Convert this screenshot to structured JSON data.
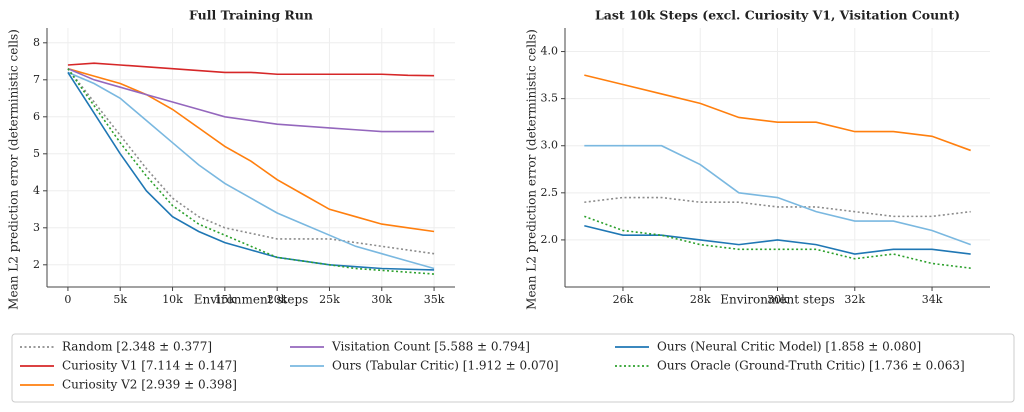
{
  "chart_data": [
    {
      "type": "line",
      "title": "Full Training Run",
      "xlabel": "Environment steps",
      "ylabel": "Mean L2 prediction error (deterministic cells)",
      "legend": "bottom",
      "x": [
        0,
        2500,
        5000,
        7500,
        10000,
        12500,
        15000,
        17500,
        20000,
        22500,
        25000,
        27500,
        30000,
        32500,
        35000
      ],
      "xlim": [
        -2000,
        37000
      ],
      "xticks": [
        0,
        {
          "value": 5000,
          "label": "5k"
        },
        {
          "value": 10000,
          "label": "10k"
        },
        {
          "value": 15000,
          "label": "15k"
        },
        {
          "value": 20000,
          "label": "20k"
        },
        {
          "value": 25000,
          "label": "25k"
        },
        {
          "value": 30000,
          "label": "30k"
        },
        {
          "value": 35000,
          "label": "35k"
        }
      ],
      "ylim": [
        1.4,
        8.4
      ],
      "yticks": [
        2,
        3,
        4,
        5,
        6,
        7,
        8
      ],
      "grid": true,
      "series": [
        {
          "name": "Random  [2.348 ± 0.377]",
          "color": "#8c8c8c",
          "dash": "dotted",
          "values": [
            7.3,
            6.4,
            5.5,
            4.6,
            3.8,
            3.3,
            3.0,
            2.85,
            2.7,
            2.7,
            2.7,
            2.6,
            2.5,
            2.4,
            2.3
          ]
        },
        {
          "name": "Curiosity V1  [7.114 ± 0.147]",
          "color": "#d62728",
          "dash": "solid",
          "values": [
            7.4,
            7.45,
            7.4,
            7.35,
            7.3,
            7.25,
            7.2,
            7.2,
            7.15,
            7.15,
            7.15,
            7.15,
            7.15,
            7.12,
            7.11
          ]
        },
        {
          "name": "Curiosity V2  [2.939 ± 0.398]",
          "color": "#ff7f0e",
          "dash": "solid",
          "values": [
            7.3,
            7.1,
            6.9,
            6.6,
            6.2,
            5.7,
            5.2,
            4.8,
            4.3,
            3.9,
            3.5,
            3.3,
            3.1,
            3.0,
            2.9
          ]
        },
        {
          "name": "Visitation Count  [5.588 ± 0.794]",
          "color": "#9467bd",
          "dash": "solid",
          "values": [
            7.3,
            7.0,
            6.8,
            6.6,
            6.4,
            6.2,
            6.0,
            5.9,
            5.8,
            5.75,
            5.7,
            5.65,
            5.6,
            5.6,
            5.6
          ]
        },
        {
          "name": "Ours (Tabular Critic)  [1.912 ± 0.070]",
          "color": "#7ab8e0",
          "dash": "solid",
          "values": [
            7.2,
            6.9,
            6.5,
            5.9,
            5.3,
            4.7,
            4.2,
            3.8,
            3.4,
            3.1,
            2.8,
            2.5,
            2.3,
            2.1,
            1.9
          ]
        },
        {
          "name": "Ours (Neural Critic Model)  [1.858 ± 0.080]",
          "color": "#1f77b4",
          "dash": "solid",
          "values": [
            7.2,
            6.1,
            5.0,
            4.0,
            3.3,
            2.9,
            2.6,
            2.4,
            2.2,
            2.1,
            2.0,
            1.95,
            1.9,
            1.88,
            1.86
          ]
        },
        {
          "name": "Ours Oracle (Ground-Truth Critic)  [1.736 ± 0.063]",
          "color": "#2ca02c",
          "dash": "dotted",
          "values": [
            7.3,
            6.3,
            5.3,
            4.4,
            3.6,
            3.1,
            2.8,
            2.5,
            2.2,
            2.1,
            2.0,
            1.9,
            1.85,
            1.8,
            1.75
          ]
        }
      ]
    },
    {
      "type": "line",
      "title": "Last 10k Steps (excl. Curiosity V1, Visitation Count)",
      "xlabel": "Environment steps",
      "ylabel": "Mean L2 prediction error (deterministic cells)",
      "x": [
        25000,
        26000,
        27000,
        28000,
        29000,
        30000,
        31000,
        32000,
        33000,
        34000,
        35000
      ],
      "xlim": [
        24500,
        35500
      ],
      "xticks": [
        {
          "value": 26000,
          "label": "26k"
        },
        {
          "value": 28000,
          "label": "28k"
        },
        {
          "value": 30000,
          "label": "30k"
        },
        {
          "value": 32000,
          "label": "32k"
        },
        {
          "value": 34000,
          "label": "34k"
        }
      ],
      "ylim": [
        1.5,
        4.25
      ],
      "yticks": [
        {
          "value": 2,
          "label": "2.0"
        },
        {
          "value": 2.5,
          "label": "2.5"
        },
        {
          "value": 3,
          "label": "3.0"
        },
        {
          "value": 3.5,
          "label": "3.5"
        },
        {
          "value": 4,
          "label": "4.0"
        }
      ],
      "grid": true,
      "series": [
        {
          "color": "#8c8c8c",
          "dash": "dotted",
          "values": [
            2.4,
            2.45,
            2.45,
            2.4,
            2.4,
            2.35,
            2.35,
            2.3,
            2.25,
            2.25,
            2.3
          ]
        },
        {
          "color": "#ff7f0e",
          "dash": "solid",
          "values": [
            3.75,
            3.65,
            3.55,
            3.45,
            3.3,
            3.25,
            3.25,
            3.15,
            3.15,
            3.1,
            2.95
          ]
        },
        {
          "color": "#7ab8e0",
          "dash": "solid",
          "values": [
            3.0,
            3.0,
            3.0,
            2.8,
            2.5,
            2.45,
            2.3,
            2.2,
            2.2,
            2.1,
            1.95
          ]
        },
        {
          "color": "#1f77b4",
          "dash": "solid",
          "values": [
            2.15,
            2.05,
            2.05,
            2.0,
            1.95,
            2.0,
            1.95,
            1.85,
            1.9,
            1.9,
            1.85
          ]
        },
        {
          "color": "#2ca02c",
          "dash": "dotted",
          "values": [
            2.25,
            2.1,
            2.05,
            1.95,
            1.9,
            1.9,
            1.9,
            1.8,
            1.85,
            1.75,
            1.7
          ]
        }
      ]
    }
  ]
}
